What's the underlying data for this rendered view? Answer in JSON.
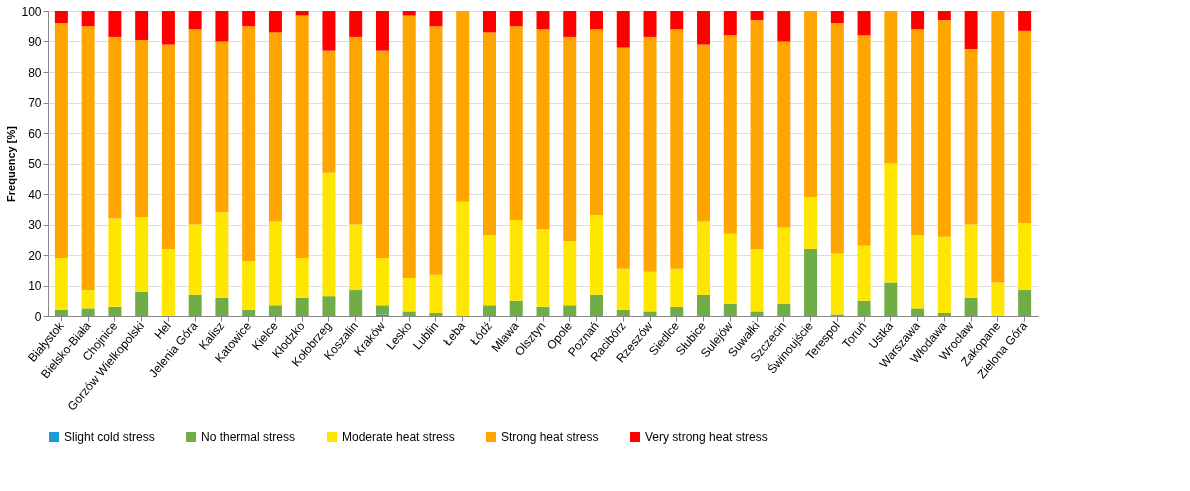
{
  "chart_data": {
    "type": "bar",
    "stacked": true,
    "ylabel": "Frequency [%]",
    "ylim": [
      0,
      100
    ],
    "yticks": [
      0,
      10,
      20,
      30,
      40,
      50,
      60,
      70,
      80,
      90,
      100
    ],
    "grid": "y",
    "legend": "bottom",
    "categories": [
      "Białystok",
      "Bielsko-Biała",
      "Chojnice",
      "Gorzów Wielkopolski",
      "Hel",
      "Jelenia Góra",
      "Kalisz",
      "Katowice",
      "Kielce",
      "Kłodzko",
      "Kołobrzeg",
      "Koszalin",
      "Kraków",
      "Lesko",
      "Lublin",
      "Łeba",
      "Łódź",
      "Mława",
      "Olsztyn",
      "Opole",
      "Poznań",
      "Racibórz",
      "Rzeszów",
      "Siedlce",
      "Słubice",
      "Sulejów",
      "Suwałki",
      "Szczecin",
      "Świnoujście",
      "Terespol",
      "Toruń",
      "Ustka",
      "Warszawa",
      "Włodawa",
      "Wrocław",
      "Zakopane",
      "Zielona Góra"
    ],
    "series": [
      {
        "name": "Slight cold stress",
        "color": "#1a9ad6",
        "values": [
          0,
          0,
          0,
          0,
          0,
          0,
          0,
          0,
          0,
          0,
          0,
          0,
          0.5,
          0,
          0,
          0,
          0,
          0,
          0,
          0,
          0,
          0,
          0,
          0,
          0,
          0,
          0,
          0,
          0,
          0,
          0,
          0,
          0,
          0,
          0,
          0,
          0
        ]
      },
      {
        "name": "No thermal stress",
        "color": "#70ad47",
        "values": [
          2,
          2.5,
          3,
          8,
          0,
          7,
          6,
          2,
          3.5,
          6,
          6.5,
          8.5,
          3,
          1.5,
          1,
          0,
          3.5,
          5,
          3,
          3.5,
          7,
          2,
          1.5,
          3,
          7,
          4,
          1.5,
          4,
          22,
          0.5,
          5,
          11,
          2.5,
          1,
          6,
          0,
          8.5
        ]
      },
      {
        "name": "Moderate heat stress",
        "color": "#ffe600",
        "values": [
          17,
          6,
          29,
          24.5,
          22,
          23,
          28,
          16,
          27.5,
          13,
          40.5,
          21.5,
          15.5,
          11,
          12.5,
          37.5,
          23,
          26.5,
          25.5,
          21,
          26,
          13.5,
          13,
          12.5,
          24,
          23,
          20.5,
          25,
          17,
          20,
          18,
          39,
          24,
          25,
          24,
          11,
          22
        ]
      },
      {
        "name": "Strong heat stress",
        "color": "#ffa500",
        "values": [
          77,
          86.5,
          59.5,
          58,
          67,
          64,
          56,
          77,
          62,
          79.5,
          40,
          61.5,
          68,
          86,
          81.5,
          62.5,
          66.5,
          63.5,
          65.5,
          67,
          61,
          72.5,
          77,
          78.5,
          58,
          65,
          75,
          61,
          61,
          75.5,
          69,
          50,
          67.5,
          71,
          57.5,
          89,
          63
        ]
      },
      {
        "name": "Very strong heat stress",
        "color": "#ff0000",
        "values": [
          4,
          5,
          8.5,
          9.5,
          11,
          6,
          10,
          5,
          7,
          1.5,
          13,
          8.5,
          13,
          1.5,
          5,
          0,
          7,
          5,
          6,
          8.5,
          6,
          12,
          8.5,
          6,
          11,
          8,
          3,
          10,
          0,
          4,
          8,
          0,
          6,
          3,
          12.5,
          0,
          6.5
        ]
      }
    ]
  }
}
